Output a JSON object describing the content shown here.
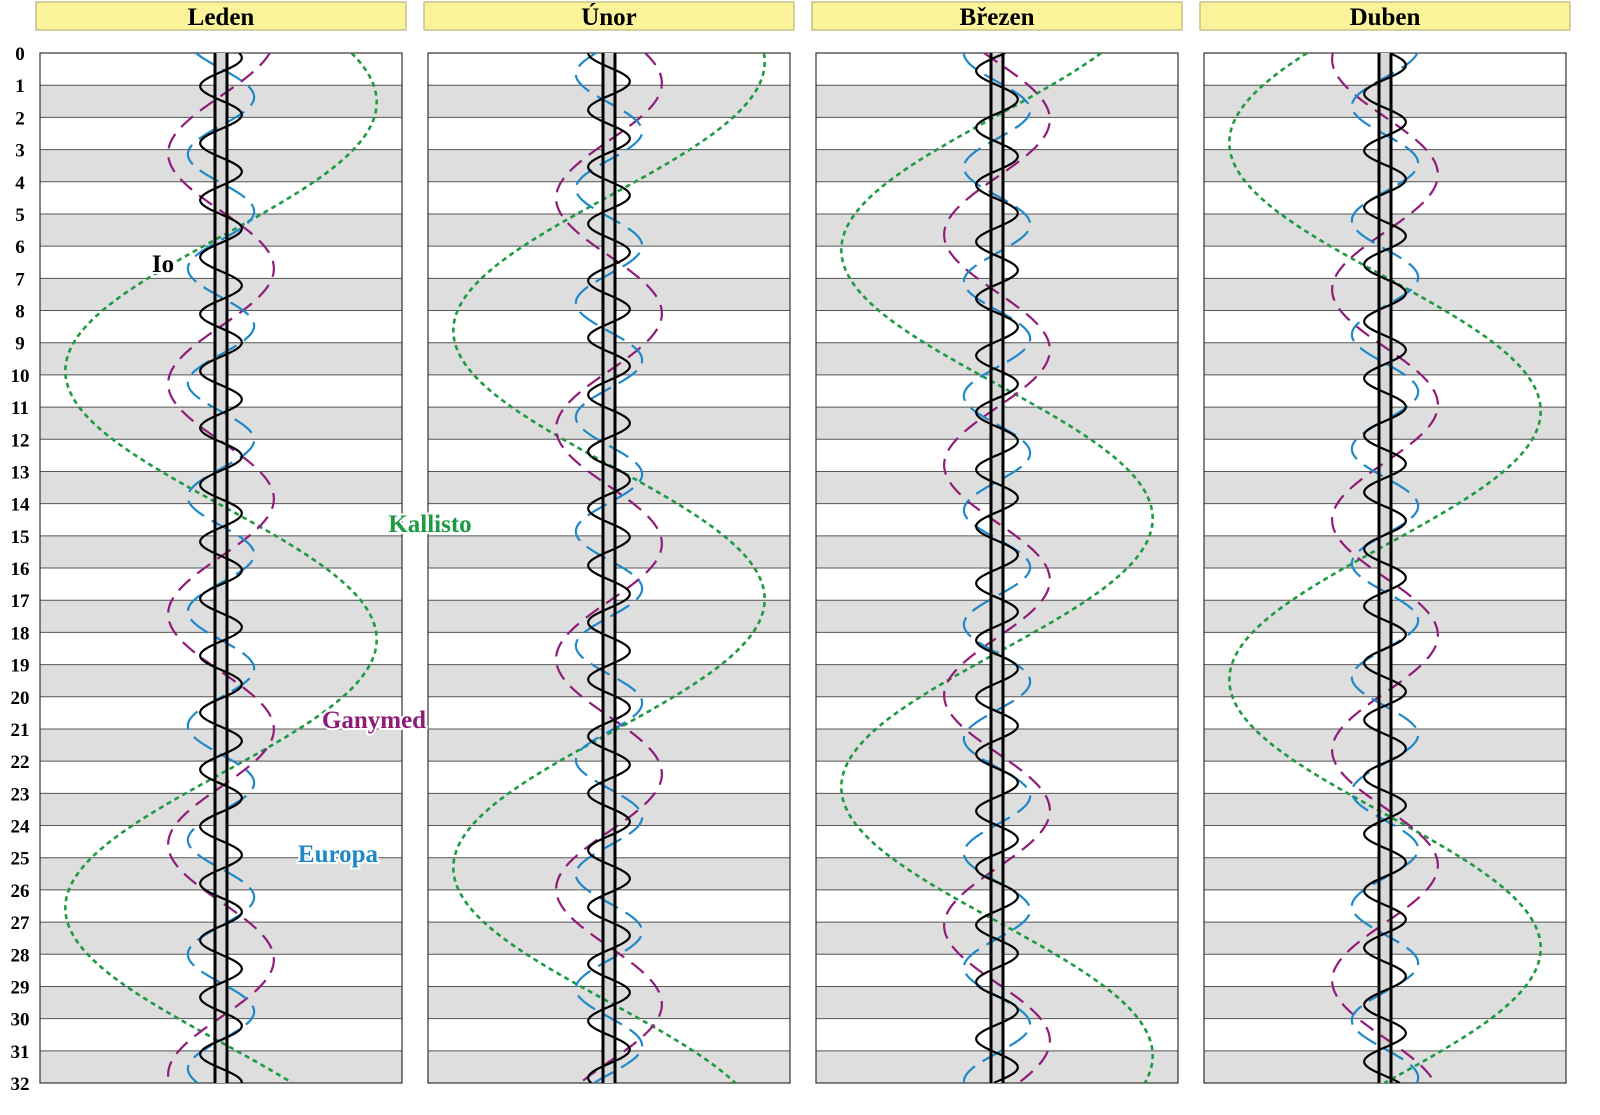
{
  "chart_data": {
    "type": "line",
    "description_kind": "Jupiter moons elongation chart (x = elongation from Jupiter, y = day of month)",
    "days": {
      "start": 0,
      "end": 32,
      "step": 1
    },
    "months": [
      {
        "name": "Leden"
      },
      {
        "name": "Únor"
      },
      {
        "name": "Březen"
      },
      {
        "name": "Duben"
      }
    ],
    "moons": [
      {
        "name": "Io",
        "color": "#000000",
        "style": "solid",
        "period_days": 1.769,
        "amplitude": 0.115,
        "phase_deg": [
          60,
          270,
          157,
          13
        ],
        "label_month": 0,
        "label_day": 6.7
      },
      {
        "name": "Europa",
        "color": "#1e88c8",
        "style": "long-dash",
        "period_days": 3.551,
        "amplitude": 0.183,
        "phase_deg": [
          311,
          203,
          270,
          103
        ],
        "label_month": 0,
        "label_day": 24.6
      },
      {
        "name": "Ganymed",
        "color": "#8e1c78",
        "style": "dash",
        "period_days": 7.155,
        "amplitude": 0.292,
        "phase_deg": [
          113,
          43,
          346,
          260
        ],
        "label_month": 0,
        "label_day": 20.5
      },
      {
        "name": "Kallisto",
        "color": "#1e9a44",
        "style": "short-dash",
        "period_days": 16.689,
        "amplitude": 0.86,
        "phase_deg": [
          57,
          84,
          138,
          210
        ],
        "label_month": 0,
        "label_day": 14.5
      }
    ],
    "colors": {
      "header_fill": "#faf39a",
      "header_border": "#c9c08a",
      "band_gray": "#dedede",
      "grid": "#555555",
      "planet_column": "#d8d8d8"
    }
  }
}
